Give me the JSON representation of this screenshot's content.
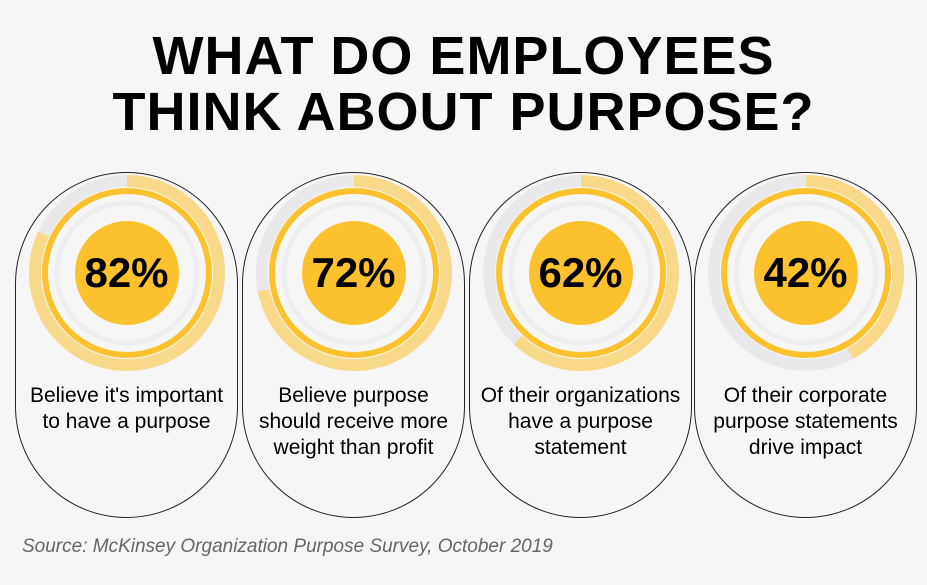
{
  "title_lines": [
    "WHAT DO EMPLOYEES",
    "THINK ABOUT PURPOSE?"
  ],
  "colors": {
    "accent": "#fcc22e",
    "light": "#f8d98a",
    "track": "#e9e8ea"
  },
  "chart_data": {
    "type": "pie",
    "title": "WHAT DO EMPLOYEES THINK ABOUT PURPOSE?",
    "items": [
      {
        "value": 82,
        "value_label": "82%",
        "label": "Believe it's important to have a purpose"
      },
      {
        "value": 72,
        "value_label": "72%",
        "label": "Believe purpose should receive more weight than profit"
      },
      {
        "value": 62,
        "value_label": "62%",
        "label": "Of their organizations have a purpose statement"
      },
      {
        "value": 42,
        "value_label": "42%",
        "label": "Of their corporate purpose statements drive impact"
      }
    ]
  },
  "source": "Source: McKinsey Organization Purpose Survey, October 2019"
}
